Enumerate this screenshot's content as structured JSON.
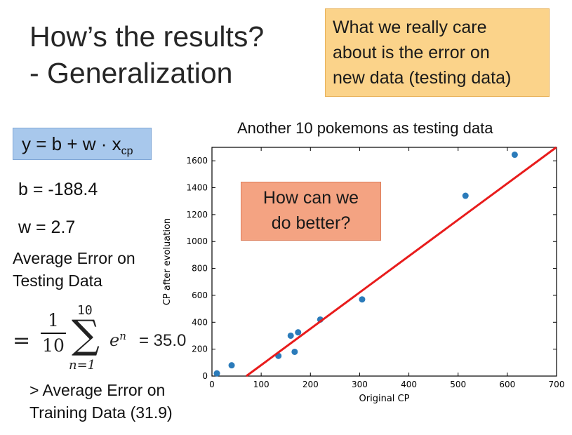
{
  "slide": {
    "title_line1": "How’s the results?",
    "title_line2": "- Generalization",
    "note_line1": "What we really care",
    "note_line2": "about is the error on",
    "note_line3": "new data (testing data)",
    "formula_main": "y = b + w · x",
    "formula_sub": "cp",
    "b_text": "b = -188.4",
    "w_text": "w = 2.7",
    "avg_line1": "Average Error on",
    "avg_line2": "Testing Data",
    "sum_eq": "=",
    "sum_num": "1",
    "sum_den": "10",
    "sum_top": "10",
    "sum_sigma": "∑",
    "sum_bottom": "n=1",
    "sum_term_base": "e",
    "sum_term_sup": "n",
    "sum_value": "= 35.0",
    "cmp_line1": "> Average Error on",
    "cmp_line2": "Training Data (31.9)",
    "callout_line1": "How can we",
    "callout_line2": "do better?"
  },
  "chart_data": {
    "type": "scatter",
    "title": "Another 10 pokemons as testing data",
    "xlabel": "Original CP",
    "ylabel": "CP after evoluation",
    "xlim": [
      0,
      700
    ],
    "ylim": [
      0,
      1700
    ],
    "xticks": [
      0,
      100,
      200,
      300,
      400,
      500,
      600,
      700
    ],
    "yticks": [
      0,
      200,
      400,
      600,
      800,
      1000,
      1200,
      1400,
      1600
    ],
    "points": [
      {
        "x": 10,
        "y": 20
      },
      {
        "x": 40,
        "y": 80
      },
      {
        "x": 135,
        "y": 150
      },
      {
        "x": 160,
        "y": 300
      },
      {
        "x": 168,
        "y": 180
      },
      {
        "x": 175,
        "y": 325
      },
      {
        "x": 220,
        "y": 420
      },
      {
        "x": 305,
        "y": 570
      },
      {
        "x": 515,
        "y": 1340
      },
      {
        "x": 615,
        "y": 1645
      }
    ],
    "fit_line": {
      "b": -188.4,
      "w": 2.7,
      "color": "#e81c1c"
    },
    "point_color": "#2b7bba"
  }
}
